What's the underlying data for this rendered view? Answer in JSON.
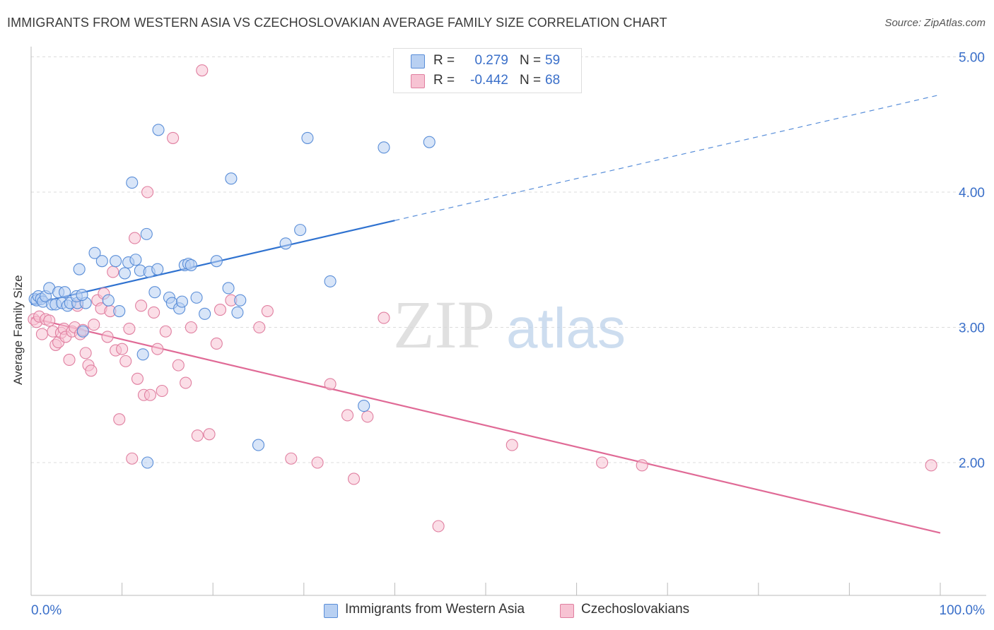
{
  "header": {
    "title": "IMMIGRANTS FROM WESTERN ASIA VS CZECHOSLOVAKIAN AVERAGE FAMILY SIZE CORRELATION CHART",
    "source": "Source: ZipAtlas.com"
  },
  "watermark": {
    "zip": "ZIP",
    "atlas": "atlas"
  },
  "legend": {
    "series1": {
      "r_label": "R =",
      "r_value": "0.279",
      "n_label": "N =",
      "n_value": "59"
    },
    "series2": {
      "r_label": "R =",
      "r_value": "-0.442",
      "n_label": "N =",
      "n_value": "68"
    }
  },
  "colors": {
    "blue_fill": "#b8d0f2",
    "blue_stroke": "#5a8ed8",
    "blue_line": "#2f72d0",
    "pink_fill": "#f7c3d3",
    "pink_stroke": "#e07fa0",
    "pink_line": "#e06a96",
    "tick_label": "#3a6fc9",
    "grid": "#dcdcdc"
  },
  "chart_data": {
    "type": "scatter",
    "title": "IMMIGRANTS FROM WESTERN ASIA VS CZECHOSLOVAKIAN AVERAGE FAMILY SIZE CORRELATION CHART",
    "xlabel": "",
    "ylabel": "Average Family Size",
    "xlim": [
      0,
      100
    ],
    "ylim": [
      1.1,
      5.15
    ],
    "x_tick_labels": [
      "0.0%",
      "100.0%"
    ],
    "y_ticks": [
      2.0,
      3.0,
      4.0,
      5.0
    ],
    "y_tick_labels": [
      "2.00",
      "3.00",
      "4.00",
      "5.00"
    ],
    "grid": true,
    "legend_position": "top-center",
    "series": [
      {
        "name": "Immigrants from Western Asia",
        "r": 0.279,
        "n": 59,
        "trend": {
          "x": [
            0,
            100
          ],
          "y": [
            3.17,
            4.72
          ],
          "solid_until_x": 40
        },
        "points": [
          [
            0.4,
            3.21
          ],
          [
            0.6,
            3.2
          ],
          [
            0.8,
            3.23
          ],
          [
            1.1,
            3.21
          ],
          [
            1.3,
            3.19
          ],
          [
            1.6,
            3.23
          ],
          [
            2.0,
            3.29
          ],
          [
            2.3,
            3.17
          ],
          [
            2.7,
            3.17
          ],
          [
            3.0,
            3.26
          ],
          [
            3.4,
            3.18
          ],
          [
            3.7,
            3.26
          ],
          [
            4.0,
            3.16
          ],
          [
            4.3,
            3.18
          ],
          [
            5.1,
            3.18
          ],
          [
            5.0,
            3.23
          ],
          [
            5.3,
            3.43
          ],
          [
            5.7,
            2.97
          ],
          [
            6.0,
            3.18
          ],
          [
            5.6,
            3.24
          ],
          [
            7.0,
            3.55
          ],
          [
            7.8,
            3.49
          ],
          [
            8.5,
            3.2
          ],
          [
            9.3,
            3.49
          ],
          [
            9.7,
            3.12
          ],
          [
            10.3,
            3.4
          ],
          [
            10.7,
            3.48
          ],
          [
            11.1,
            4.07
          ],
          [
            11.5,
            3.5
          ],
          [
            12.0,
            3.42
          ],
          [
            12.3,
            2.8
          ],
          [
            12.7,
            3.69
          ],
          [
            13.0,
            3.41
          ],
          [
            13.6,
            3.26
          ],
          [
            13.9,
            3.43
          ],
          [
            14.0,
            4.46
          ],
          [
            15.2,
            3.22
          ],
          [
            15.5,
            3.18
          ],
          [
            16.3,
            3.14
          ],
          [
            16.6,
            3.19
          ],
          [
            16.9,
            3.46
          ],
          [
            17.3,
            3.47
          ],
          [
            17.6,
            3.46
          ],
          [
            18.2,
            3.22
          ],
          [
            19.1,
            3.1
          ],
          [
            20.4,
            3.49
          ],
          [
            21.7,
            3.29
          ],
          [
            22.0,
            4.1
          ],
          [
            22.7,
            3.11
          ],
          [
            23.0,
            3.2
          ],
          [
            25.0,
            2.13
          ],
          [
            28.0,
            3.62
          ],
          [
            29.6,
            3.72
          ],
          [
            30.4,
            4.4
          ],
          [
            32.9,
            3.34
          ],
          [
            38.8,
            4.33
          ],
          [
            43.8,
            4.37
          ],
          [
            36.6,
            2.42
          ],
          [
            12.8,
            2.0
          ]
        ]
      },
      {
        "name": "Czechoslovakians",
        "r": -0.442,
        "n": 68,
        "trend": {
          "x": [
            0,
            100
          ],
          "y": [
            3.07,
            1.48
          ]
        },
        "points": [
          [
            0.3,
            3.06
          ],
          [
            0.6,
            3.04
          ],
          [
            0.9,
            3.08
          ],
          [
            1.2,
            2.95
          ],
          [
            1.6,
            3.06
          ],
          [
            2.0,
            3.05
          ],
          [
            2.4,
            2.97
          ],
          [
            2.7,
            2.87
          ],
          [
            3.0,
            2.89
          ],
          [
            3.3,
            2.96
          ],
          [
            3.6,
            2.99
          ],
          [
            3.8,
            2.93
          ],
          [
            4.2,
            2.76
          ],
          [
            4.5,
            2.97
          ],
          [
            4.8,
            3.0
          ],
          [
            5.1,
            3.16
          ],
          [
            5.4,
            2.95
          ],
          [
            5.7,
            2.98
          ],
          [
            6.0,
            2.81
          ],
          [
            6.3,
            2.72
          ],
          [
            6.6,
            2.68
          ],
          [
            6.9,
            3.02
          ],
          [
            7.3,
            3.2
          ],
          [
            7.7,
            3.14
          ],
          [
            8.0,
            3.25
          ],
          [
            8.4,
            2.93
          ],
          [
            8.7,
            3.12
          ],
          [
            9.0,
            3.41
          ],
          [
            9.3,
            2.83
          ],
          [
            9.7,
            2.32
          ],
          [
            10.0,
            2.84
          ],
          [
            10.4,
            2.75
          ],
          [
            10.8,
            2.99
          ],
          [
            11.1,
            2.03
          ],
          [
            11.4,
            3.66
          ],
          [
            11.7,
            2.62
          ],
          [
            12.1,
            3.16
          ],
          [
            12.4,
            2.5
          ],
          [
            12.8,
            4.0
          ],
          [
            13.1,
            2.5
          ],
          [
            13.5,
            3.11
          ],
          [
            13.9,
            2.84
          ],
          [
            14.4,
            2.53
          ],
          [
            14.8,
            2.97
          ],
          [
            15.6,
            4.4
          ],
          [
            16.2,
            2.72
          ],
          [
            17.0,
            2.59
          ],
          [
            17.6,
            3.0
          ],
          [
            18.3,
            2.2
          ],
          [
            18.8,
            4.9
          ],
          [
            19.6,
            2.21
          ],
          [
            20.4,
            2.88
          ],
          [
            20.8,
            3.13
          ],
          [
            22.0,
            3.2
          ],
          [
            25.1,
            3.0
          ],
          [
            26.0,
            3.12
          ],
          [
            28.6,
            2.03
          ],
          [
            31.5,
            2.0
          ],
          [
            32.9,
            2.58
          ],
          [
            34.8,
            2.35
          ],
          [
            35.5,
            1.88
          ],
          [
            37.0,
            2.34
          ],
          [
            38.8,
            3.07
          ],
          [
            44.8,
            1.53
          ],
          [
            52.9,
            2.13
          ],
          [
            62.8,
            2.0
          ],
          [
            67.2,
            1.98
          ],
          [
            99.0,
            1.98
          ]
        ]
      }
    ]
  },
  "bottom_legend": {
    "item1": "Immigrants from Western Asia",
    "item2": "Czechoslovakians"
  }
}
